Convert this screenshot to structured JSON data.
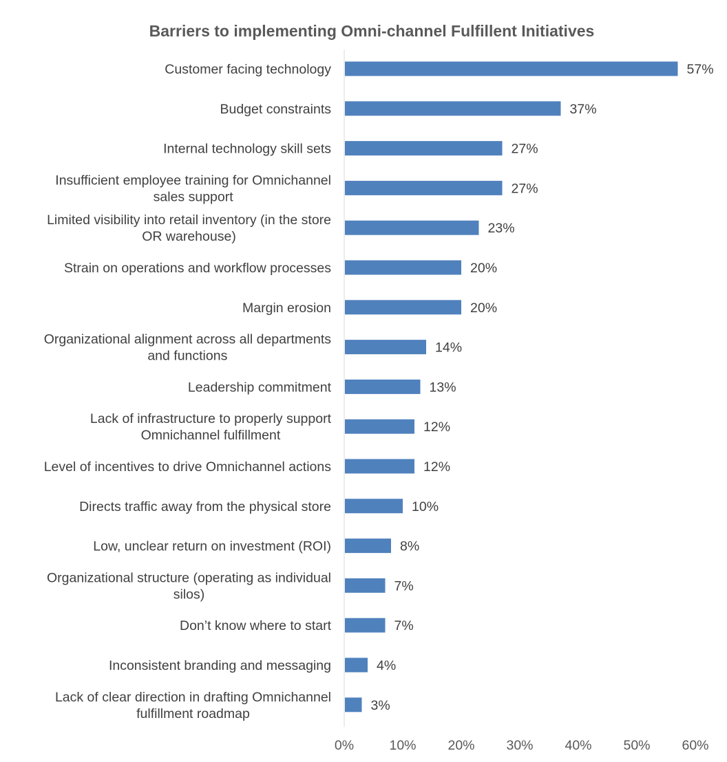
{
  "chart_data": {
    "type": "bar",
    "orientation": "horizontal",
    "title": "Barriers to implementing Omni-channel Fulfillent Initiatives",
    "xlabel": "",
    "ylabel": "",
    "categories": [
      "Customer facing technology",
      "Budget constraints",
      "Internal technology skill sets",
      "Insufficient employee training for Omnichannel sales support",
      "Limited visibility into retail inventory (in the store OR warehouse)",
      "Strain on operations and workflow processes",
      "Margin erosion",
      "Organizational alignment across all departments and functions",
      "Leadership commitment",
      "Lack of infrastructure to properly support Omnichannel fulfillment",
      "Level of incentives to drive Omnichannel actions",
      "Directs traffic away from the physical store",
      "Low, unclear return on investment (ROI)",
      "Organizational structure (operating as individual silos)",
      "Don’t know where to start",
      "Inconsistent branding and messaging",
      "Lack of clear direction in drafting Omnichannel fulfillment roadmap"
    ],
    "category_lines": [
      [
        "Customer facing technology"
      ],
      [
        "Budget constraints"
      ],
      [
        "Internal technology skill sets"
      ],
      [
        "Insufficient employee training for Omnichannel",
        "sales support"
      ],
      [
        "Limited visibility into retail inventory (in the store",
        "OR warehouse)"
      ],
      [
        "Strain on operations and workflow processes"
      ],
      [
        "Margin erosion"
      ],
      [
        "Organizational alignment across all departments",
        "and functions"
      ],
      [
        "Leadership commitment"
      ],
      [
        "Lack of infrastructure to properly support",
        "Omnichannel fulfillment"
      ],
      [
        "Level of incentives to drive Omnichannel actions"
      ],
      [
        "Directs traffic away from the physical store"
      ],
      [
        "Low, unclear return on investment (ROI)"
      ],
      [
        "Organizational structure (operating as individual",
        "silos)"
      ],
      [
        "Don’t know where to start"
      ],
      [
        "Inconsistent branding and messaging"
      ],
      [
        "Lack of clear direction in drafting Omnichannel",
        "fulfillment roadmap"
      ]
    ],
    "values": [
      57,
      37,
      27,
      27,
      23,
      20,
      20,
      14,
      13,
      12,
      12,
      10,
      8,
      7,
      7,
      4,
      3
    ],
    "data_labels": [
      "57%",
      "37%",
      "27%",
      "27%",
      "23%",
      "20%",
      "20%",
      "14%",
      "13%",
      "12%",
      "12%",
      "10%",
      "8%",
      "7%",
      "7%",
      "4%",
      "3%"
    ],
    "xlim": [
      0,
      60
    ],
    "x_ticks": [
      0,
      10,
      20,
      30,
      40,
      50,
      60
    ],
    "x_tick_labels": [
      "0%",
      "10%",
      "20%",
      "30%",
      "40%",
      "50%",
      "60%"
    ],
    "bar_color": "#4f81bd",
    "grid": false,
    "legend": "none"
  }
}
